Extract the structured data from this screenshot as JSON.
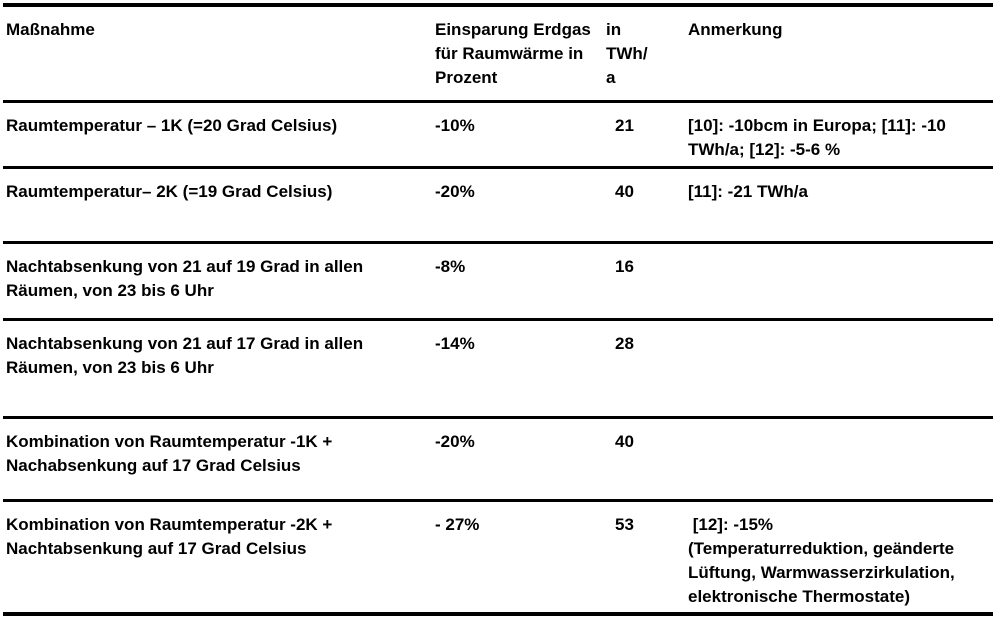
{
  "document": {
    "language": "de",
    "colors": {
      "text": "#000000",
      "rules": "#000000",
      "background": "#ffffff"
    },
    "header": {
      "massnahme": "Maßnahme",
      "einsparung": "Einsparung Erdgas\nfür Raumwärme in\nProzent",
      "twh": "in\nTWh/\na",
      "anmerkung": "Anmerkung"
    },
    "rows": [
      {
        "massnahme": "Raumtemperatur – 1K (=20 Grad Celsius)",
        "einsparung": "-10%",
        "twh_a": "21",
        "anmerkung": "[10]: -10bcm in Europa; [11]: -10\nTWh/a; [12]: -5-6 %"
      },
      {
        "massnahme": "Raumtemperatur– 2K (=19 Grad Celsius)",
        "einsparung": "-20%",
        "twh_a": "40",
        "anmerkung": "[11]: -21 TWh/a"
      },
      {
        "massnahme": "Nachtabsenkung von 21 auf 19 Grad in allen\nRäumen, von 23 bis 6 Uhr",
        "einsparung": "-8%",
        "twh_a": "16",
        "anmerkung": ""
      },
      {
        "massnahme": "Nachtabsenkung von 21 auf 17 Grad in allen\nRäumen, von 23 bis 6 Uhr",
        "einsparung": "-14%",
        "twh_a": "28",
        "anmerkung": ""
      },
      {
        "massnahme": "Kombination von Raumtemperatur -1K +\nNachabsenkung auf 17 Grad Celsius",
        "einsparung": "-20%",
        "twh_a": "40",
        "anmerkung": ""
      },
      {
        "massnahme": "Kombination von Raumtemperatur -2K +\nNachtabsenkung auf 17 Grad Celsius",
        "einsparung": "- 27%",
        "twh_a": "53",
        "anmerkung": " [12]: -15%\n(Temperaturreduktion, geänderte\nLüftung, Warmwasserzirkulation,\nelektronische Thermostate)"
      }
    ]
  }
}
